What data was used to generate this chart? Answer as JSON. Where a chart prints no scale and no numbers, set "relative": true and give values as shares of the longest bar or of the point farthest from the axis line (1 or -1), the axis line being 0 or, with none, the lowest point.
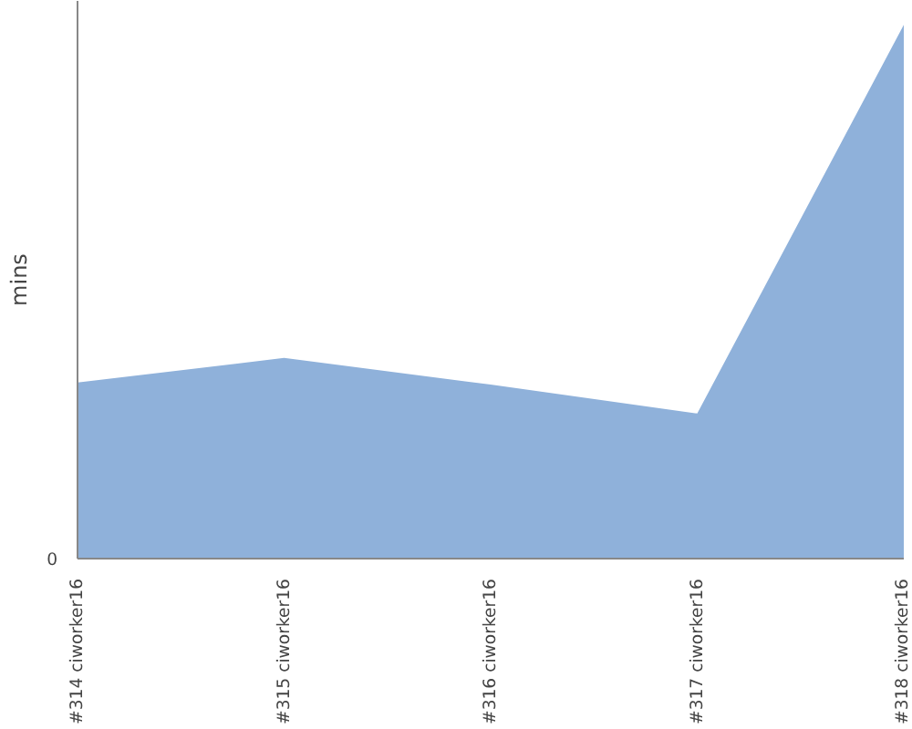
{
  "chart_data": {
    "type": "area",
    "relative": true,
    "ylabel": "mins",
    "categories": [
      "#314 ciworker16",
      "#315 ciworker16",
      "#316 ciworker16",
      "#317 ciworker16",
      "#318 ciworker16"
    ],
    "series": [
      {
        "color": "#8fb1da",
        "values": [
          0.33,
          0.376,
          0.326,
          0.272,
          1
        ]
      }
    ],
    "annotations": [
      "0"
    ],
    "grid": false
  }
}
